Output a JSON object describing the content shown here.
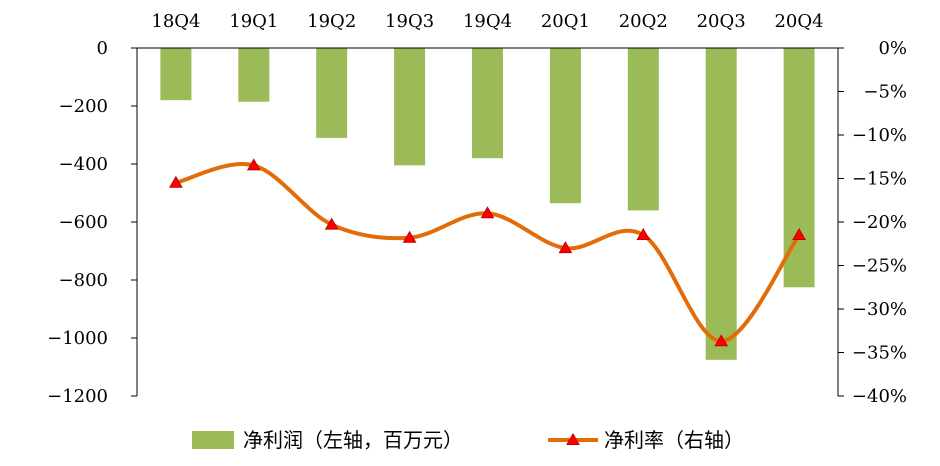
{
  "chart_data": {
    "type": "bar",
    "categories": [
      "18Q4",
      "19Q1",
      "19Q2",
      "19Q3",
      "19Q4",
      "20Q1",
      "20Q2",
      "20Q3",
      "20Q4"
    ],
    "series": [
      {
        "name": "净利润（左轴，百万元）",
        "type": "bar",
        "axis": "left",
        "values": [
          -180,
          -185,
          -310,
          -405,
          -380,
          -535,
          -560,
          -1075,
          -825
        ]
      },
      {
        "name": "净利率（右轴）",
        "type": "line",
        "axis": "right",
        "values": [
          -15.5,
          -13.5,
          -20.3,
          -21.8,
          -19.0,
          -23.0,
          -21.5,
          -33.7,
          -21.5
        ]
      }
    ],
    "left_axis": {
      "min": -1200,
      "max": 0,
      "step": 200,
      "ticks": [
        "0",
        "-200",
        "-400",
        "-600",
        "-800",
        "-1000",
        "-1200"
      ]
    },
    "right_axis": {
      "min": -40,
      "max": 0,
      "step": 5,
      "ticks": [
        "0%",
        "-5%",
        "-10%",
        "-15%",
        "-20%",
        "-25%",
        "-30%",
        "-35%",
        "-40%"
      ]
    },
    "colors": {
      "bar": "#9bbb59",
      "line": "#e36c0a",
      "marker": "#ff0000"
    },
    "grid": false,
    "legend_position": "bottom",
    "title": "",
    "xlabel": "",
    "ylabel": ""
  }
}
